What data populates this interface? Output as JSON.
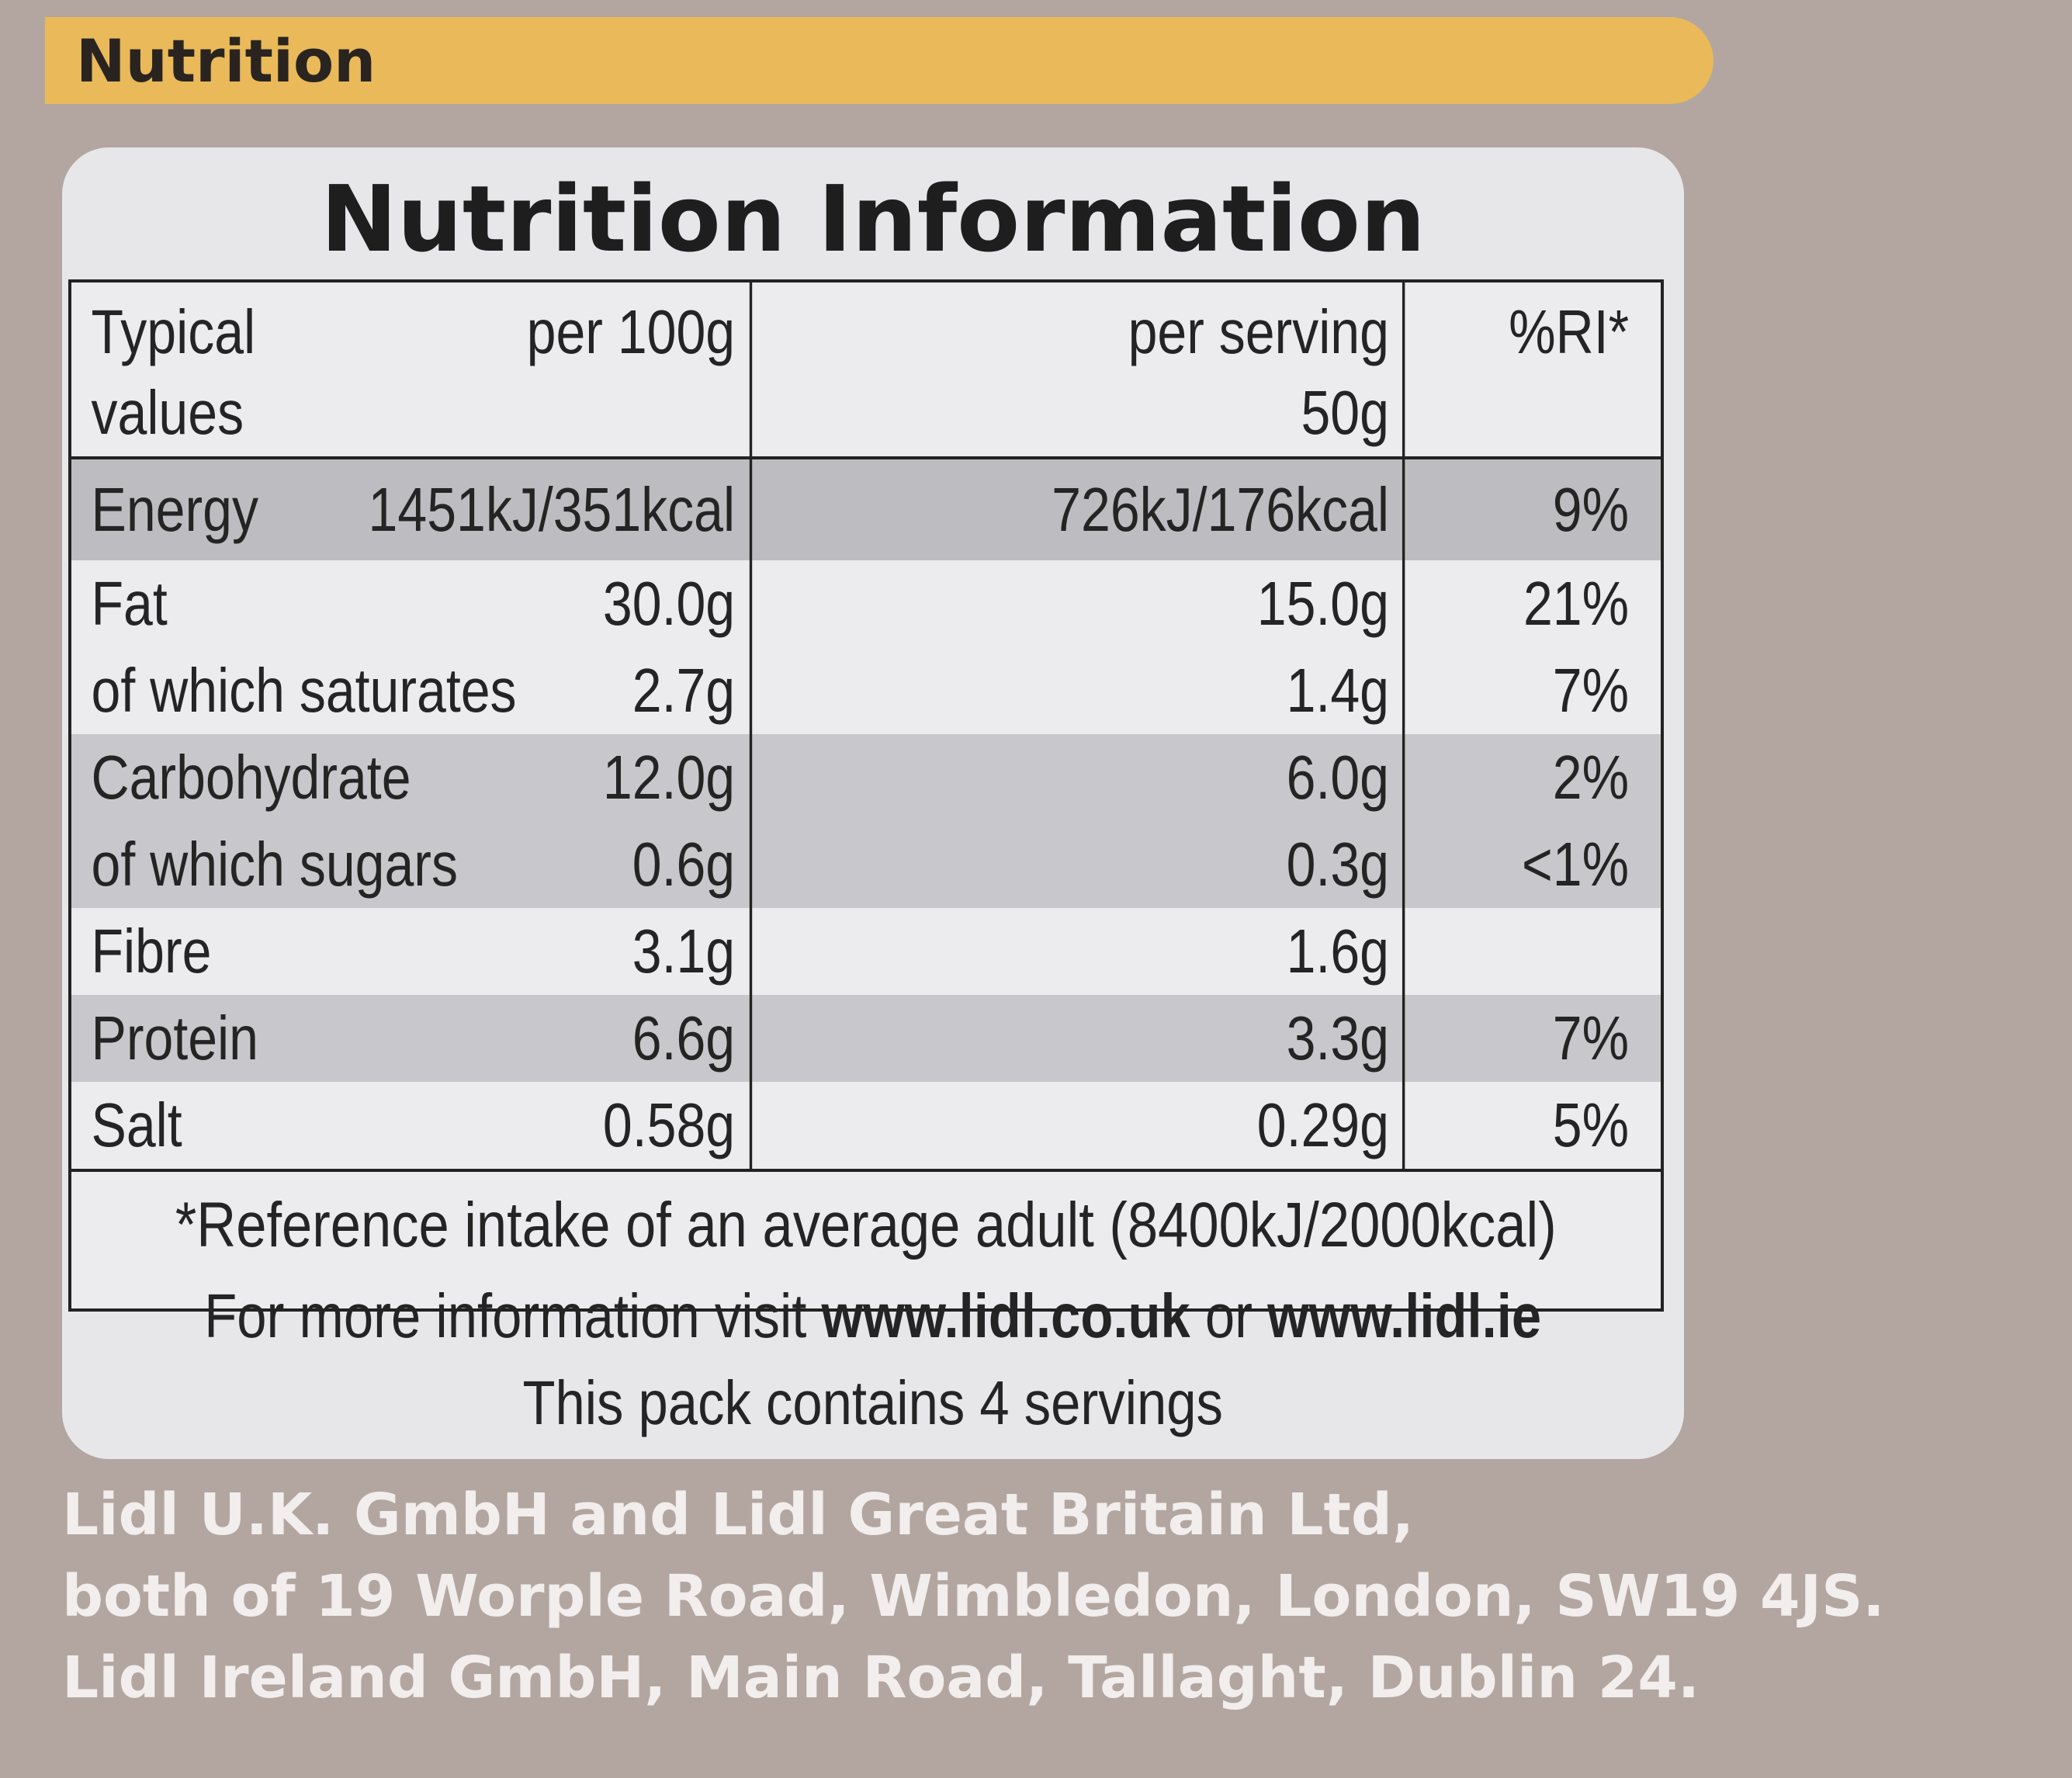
{
  "banner": {
    "label": "Nutrition"
  },
  "card": {
    "title": "Nutrition Information"
  },
  "table": {
    "headers": {
      "typical": "Typical",
      "values": "values",
      "per100": "per 100g",
      "per_serving": "per serving",
      "serving_size": "50g",
      "ri": "%RI*"
    },
    "rows": [
      {
        "name": "Energy",
        "per100": "1451kJ/351kcal",
        "serving": "726kJ/176kcal",
        "ri": "9%"
      },
      {
        "name": "Fat",
        "per100": "30.0g",
        "serving": "15.0g",
        "ri": "21%"
      },
      {
        "name": "of which saturates",
        "per100": "2.7g",
        "serving": "1.4g",
        "ri": "7%"
      },
      {
        "name": "Carbohydrate",
        "per100": "12.0g",
        "serving": "6.0g",
        "ri": "2%"
      },
      {
        "name": "of which sugars",
        "per100": "0.6g",
        "serving": "0.3g",
        "ri": "<1%"
      },
      {
        "name": "Fibre",
        "per100": "3.1g",
        "serving": "1.6g",
        "ri": ""
      },
      {
        "name": "Protein",
        "per100": "6.6g",
        "serving": "3.3g",
        "ri": "7%"
      },
      {
        "name": "Salt",
        "per100": "0.58g",
        "serving": "0.29g",
        "ri": "5%"
      }
    ],
    "footnote": "*Reference intake of an average adult (8400kJ/2000kcal)"
  },
  "more_info": {
    "prefix": "For more information visit ",
    "url_uk": "www.lidl.co.uk",
    "or": " or ",
    "url_ie": "www.lidl.ie",
    "servings": "This pack contains 4 servings"
  },
  "address": {
    "line1": "Lidl U.K. GmbH and Lidl Great Britain Ltd,",
    "line2": "both of 19 Worple Road, Wimbledon, London, SW19 4JS.",
    "line3": "Lidl Ireland GmbH, Main Road, Tallaght, Dublin 24."
  }
}
